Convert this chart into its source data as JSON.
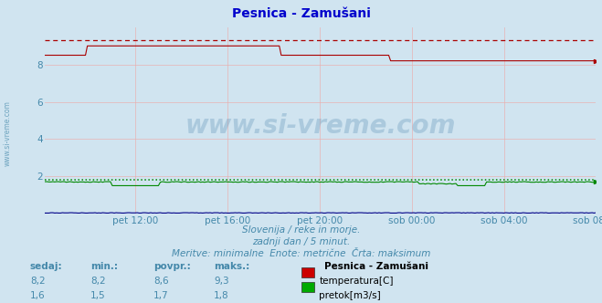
{
  "title": "Pesnica - Zamušani",
  "background_color": "#d0e4f0",
  "plot_bg_color": "#d0e4f0",
  "grid_color": "#e8b0b0",
  "xlim": [
    0,
    287
  ],
  "ylim": [
    0,
    10
  ],
  "yticks": [
    2,
    4,
    6,
    8
  ],
  "xtick_labels": [
    "pet 12:00",
    "pet 16:00",
    "pet 20:00",
    "sob 00:00",
    "sob 04:00",
    "sob 08:00"
  ],
  "xtick_positions": [
    47,
    95,
    143,
    191,
    239,
    287
  ],
  "temp_color": "#aa0000",
  "flow_color": "#008800",
  "height_color": "#000088",
  "temp_max_value": 9.3,
  "flow_max_value": 1.8,
  "subtitle1": "Slovenija / reke in morje.",
  "subtitle2": "zadnji dan / 5 minut.",
  "subtitle3": "Meritve: minimalne  Enote: metrične  Črta: maksimum",
  "legend_title": "Pesnica - Zamušani",
  "legend_items": [
    "temperatura[C]",
    "pretok[m3/s]"
  ],
  "legend_colors": [
    "#cc0000",
    "#00aa00"
  ],
  "table_headers": [
    "sedaj:",
    "min.:",
    "povpr.:",
    "maks.:"
  ],
  "table_data": [
    [
      "8,2",
      "8,2",
      "8,6",
      "9,3"
    ],
    [
      "1,6",
      "1,5",
      "1,7",
      "1,8"
    ]
  ],
  "font_color": "#4488aa",
  "title_color": "#0000cc",
  "watermark_left": "www.si-vreme.com"
}
